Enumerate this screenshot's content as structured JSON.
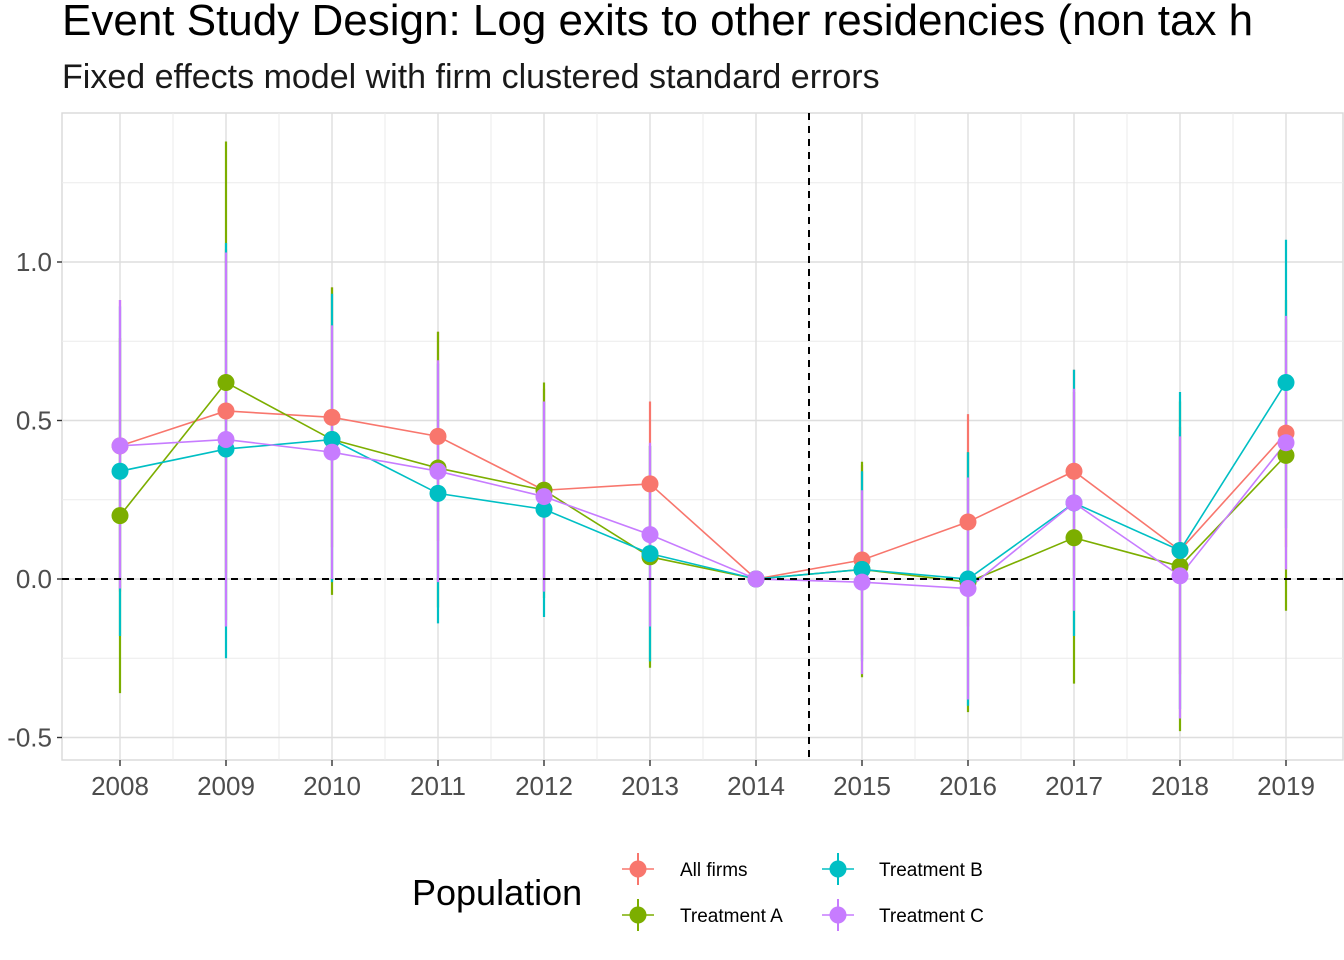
{
  "title": "Event Study Design: Log exits to other residencies (non tax h",
  "subtitle": "Fixed effects model with firm clustered standard errors",
  "chart_data": {
    "type": "line",
    "x": [
      "2008",
      "2009",
      "2010",
      "2011",
      "2012",
      "2013",
      "2014",
      "2015",
      "2016",
      "2017",
      "2018",
      "2019"
    ],
    "ylim": [
      -0.53,
      1.5
    ],
    "y_ticks": [
      -0.5,
      0.0,
      0.5,
      1.0
    ],
    "y_tick_labels": [
      "-0.5",
      "0.0",
      "0.5",
      "1.0"
    ],
    "grid": true,
    "reference_lines": {
      "horizontal_y": 0.0,
      "vertical_between": [
        "2014",
        "2015"
      ],
      "style": "dashed"
    },
    "legend": {
      "title": "Population",
      "position": "bottom"
    },
    "series": [
      {
        "name": "All firms",
        "color": "#F8766D",
        "values": [
          0.42,
          0.53,
          0.51,
          0.45,
          0.28,
          0.3,
          0.0,
          0.06,
          0.18,
          0.34,
          0.09,
          0.46
        ],
        "lower": [
          -0.04,
          0.02,
          0.1,
          0.12,
          -0.04,
          0.05,
          0.0,
          -0.24,
          -0.15,
          0.01,
          -0.3,
          0.1
        ],
        "upper": [
          0.88,
          1.04,
          0.92,
          0.78,
          0.6,
          0.56,
          0.0,
          0.36,
          0.52,
          0.66,
          0.48,
          0.82
        ]
      },
      {
        "name": "Treatment A",
        "color": "#7CAE00",
        "values": [
          0.2,
          0.62,
          0.44,
          0.35,
          0.28,
          0.07,
          0.0,
          0.03,
          -0.01,
          0.13,
          0.04,
          0.39
        ],
        "lower": [
          -0.36,
          -0.13,
          -0.05,
          -0.09,
          -0.06,
          -0.28,
          0.0,
          -0.31,
          -0.42,
          -0.33,
          -0.48,
          -0.1
        ],
        "upper": [
          0.76,
          1.38,
          0.92,
          0.78,
          0.62,
          0.42,
          0.0,
          0.37,
          0.4,
          0.59,
          0.56,
          0.88
        ]
      },
      {
        "name": "Treatment B",
        "color": "#00BFC4",
        "values": [
          0.34,
          0.41,
          0.44,
          0.27,
          0.22,
          0.08,
          0.0,
          0.03,
          0.0,
          0.24,
          0.09,
          0.62
        ],
        "lower": [
          -0.18,
          -0.25,
          -0.01,
          -0.14,
          -0.12,
          -0.26,
          0.0,
          -0.26,
          -0.4,
          -0.18,
          -0.41,
          0.16
        ],
        "upper": [
          0.86,
          1.06,
          0.9,
          0.68,
          0.56,
          0.42,
          0.0,
          0.34,
          0.4,
          0.66,
          0.59,
          1.07
        ]
      },
      {
        "name": "Treatment C",
        "color": "#C77CFF",
        "values": [
          0.42,
          0.44,
          0.4,
          0.34,
          0.26,
          0.14,
          0.0,
          -0.01,
          -0.03,
          0.24,
          0.01,
          0.43
        ],
        "lower": [
          -0.03,
          -0.15,
          0.0,
          -0.01,
          -0.04,
          -0.15,
          0.0,
          -0.3,
          -0.38,
          -0.1,
          -0.44,
          0.03
        ],
        "upper": [
          0.88,
          1.03,
          0.8,
          0.69,
          0.56,
          0.43,
          0.0,
          0.28,
          0.32,
          0.6,
          0.45,
          0.83
        ]
      }
    ]
  }
}
